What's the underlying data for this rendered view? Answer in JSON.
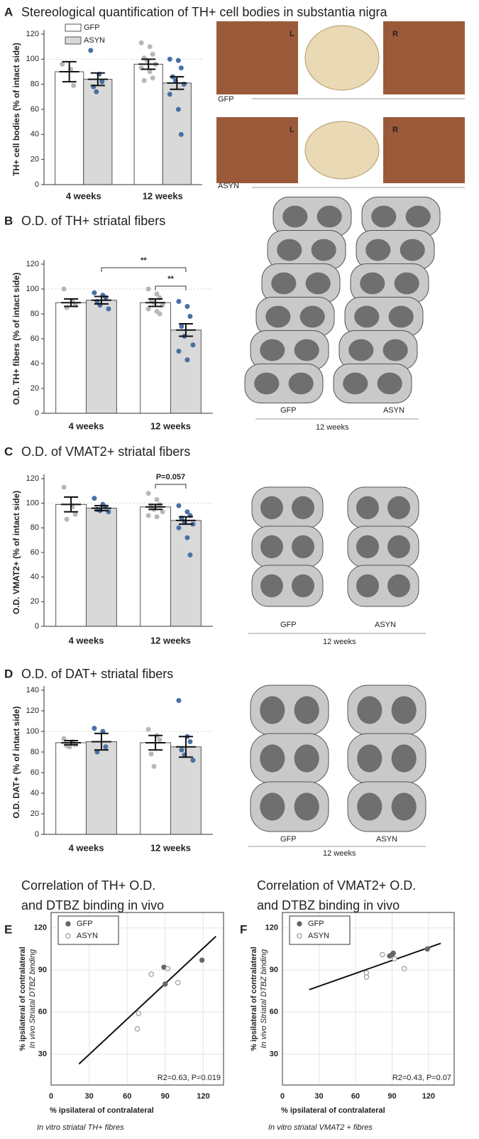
{
  "chart_data": [
    {
      "type": "bar",
      "panel": "A",
      "title": "Stereological quantification of TH+ cell bodies in substantia nigra",
      "ylabel": "TH+ cell bodies (% of intact side)",
      "categories": [
        "4 weeks",
        "12 weeks"
      ],
      "series": [
        {
          "name": "GFP",
          "color": "#ffffff",
          "point_color": "#b8b8b8",
          "values": [
            90,
            96
          ],
          "errors": [
            8,
            4
          ],
          "points": [
            [
              96,
              92,
              79
            ],
            [
              113,
              110,
              104,
              101,
              99,
              96,
              93,
              90,
              85,
              83
            ]
          ]
        },
        {
          "name": "ASYN",
          "color": "#d9d9d9",
          "point_color": "#4a6fa5",
          "values": [
            84,
            81
          ],
          "errors": [
            5,
            5
          ],
          "points": [
            [
              107,
              88,
              82,
              78,
              74
            ],
            [
              100,
              99,
              93,
              86,
              83,
              80,
              72,
              60,
              40
            ]
          ]
        }
      ],
      "ylim": [
        0,
        120
      ],
      "yticks": [
        0,
        20,
        40,
        60,
        80,
        100,
        120
      ],
      "reference_line": 100,
      "legend": true,
      "brackets": [],
      "image_labels": [
        "L",
        "R",
        "GFP",
        "L",
        "R",
        "ASYN"
      ]
    },
    {
      "type": "bar",
      "panel": "B",
      "title": "O.D. of TH+ striatal fibers",
      "ylabel": "O.D. TH+ fibers (% of intact side)",
      "categories": [
        "4 weeks",
        "12 weeks"
      ],
      "series": [
        {
          "name": "GFP",
          "color": "#ffffff",
          "point_color": "#b8b8b8",
          "values": [
            89,
            89
          ],
          "errors": [
            3,
            3
          ],
          "points": [
            [
              100,
              90,
              87,
              85
            ],
            [
              100,
              96,
              93,
              91,
              89,
              87,
              84,
              82,
              80
            ]
          ]
        },
        {
          "name": "ASYN",
          "color": "#d9d9d9",
          "point_color": "#4a6fa5",
          "values": [
            91,
            67
          ],
          "errors": [
            3,
            5
          ],
          "points": [
            [
              97,
              95,
              93,
              90,
              87,
              84
            ],
            [
              90,
              86,
              78,
              70,
              62,
              55,
              50,
              43
            ]
          ]
        }
      ],
      "ylim": [
        0,
        120
      ],
      "yticks": [
        0,
        20,
        40,
        60,
        80,
        100,
        120
      ],
      "reference_line": 100,
      "legend": false,
      "brackets": [
        {
          "series": [
            0,
            1
          ],
          "categories": [
            1,
            1
          ],
          "label": "**"
        },
        {
          "series": [
            1,
            1
          ],
          "categories": [
            0,
            1
          ],
          "label": "**"
        }
      ],
      "image_labels": [
        "GFP",
        "ASYN",
        "12 weeks"
      ]
    },
    {
      "type": "bar",
      "panel": "C",
      "title": "O.D. of VMAT2+ striatal fibers",
      "ylabel": "O.D. VMAT2+ (% of intact side)",
      "categories": [
        "4 weeks",
        "12 weeks"
      ],
      "series": [
        {
          "name": "GFP",
          "color": "#ffffff",
          "point_color": "#b8b8b8",
          "values": [
            99,
            97
          ],
          "errors": [
            6,
            2
          ],
          "points": [
            [
              113,
              97,
              91,
              87
            ],
            [
              108,
              103,
              99,
              97,
              95,
              93,
              90,
              89
            ]
          ]
        },
        {
          "name": "ASYN",
          "color": "#d9d9d9",
          "point_color": "#4a6fa5",
          "values": [
            96,
            86
          ],
          "errors": [
            2,
            3
          ],
          "points": [
            [
              104,
              99,
              97,
              95,
              94,
              93
            ],
            [
              98,
              93,
              90,
              88,
              85,
              83,
              80,
              72,
              58
            ]
          ]
        }
      ],
      "ylim": [
        0,
        120
      ],
      "yticks": [
        0,
        20,
        40,
        60,
        80,
        100,
        120
      ],
      "reference_line": 100,
      "legend": false,
      "brackets": [
        {
          "series": [
            0,
            1
          ],
          "categories": [
            1,
            1
          ],
          "label": "P=0.057"
        }
      ],
      "image_labels": [
        "GFP",
        "ASYN",
        "12 weeks"
      ]
    },
    {
      "type": "bar",
      "panel": "D",
      "title": "O.D. of DAT+ striatal fibers",
      "ylabel": "O.D. DAT+ (% of intact side)",
      "categories": [
        "4 weeks",
        "12 weeks"
      ],
      "series": [
        {
          "name": "GFP",
          "color": "#ffffff",
          "point_color": "#b8b8b8",
          "values": [
            89,
            89
          ],
          "errors": [
            2,
            7
          ],
          "points": [
            [
              93,
              90,
              87,
              86,
              85
            ],
            [
              102,
              96,
              92,
              78,
              66
            ]
          ]
        },
        {
          "name": "ASYN",
          "color": "#d9d9d9",
          "point_color": "#4a6fa5",
          "values": [
            90,
            85
          ],
          "errors": [
            8,
            10
          ],
          "points": [
            [
              103,
              100,
              85,
              80
            ],
            [
              130,
              95,
              90,
              82,
              77,
              72
            ]
          ]
        }
      ],
      "ylim": [
        0,
        140
      ],
      "yticks": [
        0,
        20,
        40,
        60,
        80,
        100,
        120,
        140
      ],
      "reference_line": 100,
      "legend": false,
      "brackets": [],
      "image_labels": [
        "GFP",
        "ASYN",
        "12 weeks"
      ]
    },
    {
      "type": "scatter",
      "panel": "E",
      "title": [
        "Correlation of TH+ O.D.",
        "and DTBZ binding in vivo"
      ],
      "xlabel": [
        "% ipsilateral of contralateral",
        "In vitro striatal TH+ fibres"
      ],
      "ylabel": [
        "% ipsilateral of contralateral",
        "In vivo Striatal DTBZ binding"
      ],
      "series": [
        {
          "name": "GFP",
          "color": "#666666",
          "filled": true,
          "x": [
            89,
            90,
            119
          ],
          "y": [
            92,
            80,
            97
          ]
        },
        {
          "name": "ASYN",
          "color": "#888888",
          "filled": false,
          "x": [
            69,
            68,
            79,
            92,
            100
          ],
          "y": [
            59,
            48,
            87,
            91,
            81
          ]
        }
      ],
      "fit": {
        "x": [
          22,
          130
        ],
        "y": [
          23,
          114
        ]
      },
      "annotation": "R2=0.63, P=0.019",
      "xlim": [
        0,
        136
      ],
      "ylim": [
        8,
        131
      ],
      "xticks": [
        0,
        30,
        60,
        90,
        120
      ],
      "yticks": [
        30,
        60,
        90,
        120
      ],
      "grid": true
    },
    {
      "type": "scatter",
      "panel": "F",
      "title": [
        "Correlation of VMAT2+ O.D.",
        "and DTBZ binding in vivo"
      ],
      "xlabel": [
        "% ipsilateral of contralateral",
        "In vitro striatal VMAT2 + fibres"
      ],
      "ylabel": [
        "% ipsilateral of contralateral",
        "In vivo Striatal DTBZ binding"
      ],
      "series": [
        {
          "name": "GFP",
          "color": "#666666",
          "filled": true,
          "x": [
            88,
            90,
            91,
            119
          ],
          "y": [
            100,
            101,
            102,
            105
          ]
        },
        {
          "name": "ASYN",
          "color": "#888888",
          "filled": false,
          "x": [
            69,
            69,
            82,
            92,
            100
          ],
          "y": [
            88,
            85,
            101,
            98,
            91
          ]
        }
      ],
      "fit": {
        "x": [
          22,
          130
        ],
        "y": [
          76,
          109
        ]
      },
      "annotation": "R2=0.43, P=0.07",
      "xlim": [
        0,
        141
      ],
      "ylim": [
        8,
        131
      ],
      "xticks": [
        0,
        30,
        60,
        90,
        120
      ],
      "yticks": [
        30,
        60,
        90,
        120
      ],
      "grid": true
    }
  ]
}
